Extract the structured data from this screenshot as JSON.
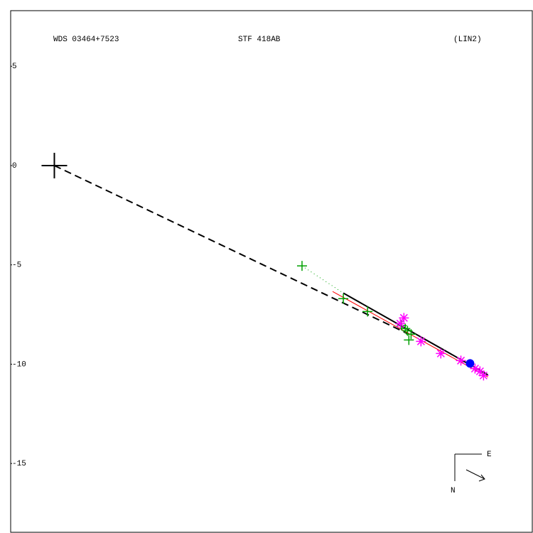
{
  "chart_data": {
    "type": "scatter",
    "title": "WDS 03464+7523",
    "subtitle": "STF 418AB",
    "reference": "(LIN2)",
    "compass": {
      "east": "E",
      "north": "N"
    },
    "xlim": [
      -2.2,
      24.1
    ],
    "ylim": [
      -18.5,
      7.8
    ],
    "yticks": [
      5,
      0,
      -5,
      -10,
      -15
    ],
    "lines": [
      {
        "style": "dashed",
        "color": "#000000",
        "x": [
          0,
          17.85
        ],
        "y": [
          0,
          -8.49
        ]
      },
      {
        "style": "solid",
        "color": "#000000",
        "x": [
          14.55,
          21.83
        ],
        "y": [
          -6.42,
          -10.54
        ]
      },
      {
        "style": "solid",
        "color": "#ff0000",
        "x": [
          14.01,
          21.83
        ],
        "y": [
          -6.34,
          -10.65
        ]
      },
      {
        "style": "dotted",
        "color": "#00a000",
        "x": [
          12.47,
          14.55
        ],
        "y": [
          -5.05,
          -6.42
        ]
      }
    ],
    "series": [
      {
        "marker": "plus",
        "color": "#00a000",
        "x": [
          12.47,
          14.55,
          15.77,
          17.49,
          17.78,
          17.96,
          17.85,
          17.67
        ],
        "values": [
          -5.05,
          -6.7,
          -7.35,
          -8.06,
          -8.32,
          -8.49,
          -8.78,
          -8.21
        ]
      },
      {
        "marker": "star",
        "color": "#ff00ff",
        "x": [
          17.6,
          17.42,
          18.46,
          19.46,
          20.47,
          21.18,
          21.43,
          21.61
        ],
        "values": [
          -7.67,
          -7.96,
          -8.85,
          -9.46,
          -9.82,
          -10.22,
          -10.36,
          -10.57
        ]
      },
      {
        "marker": "circle",
        "color": "#0000ff",
        "x": [
          20.93
        ],
        "values": [
          -9.96
        ]
      }
    ]
  }
}
